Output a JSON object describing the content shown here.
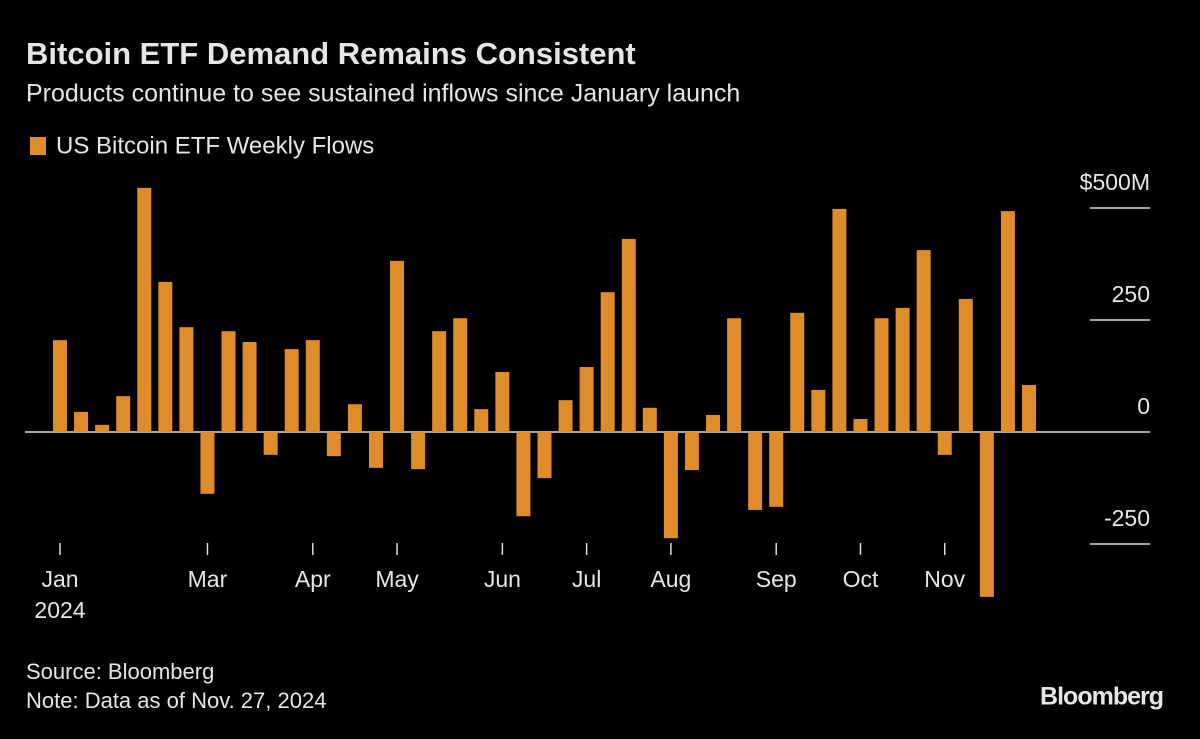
{
  "chart_data": {
    "type": "bar",
    "title": "Bitcoin ETF Demand Remains Consistent",
    "subtitle": "Products continue to see sustained inflows since January launch",
    "series": [
      {
        "name": "US Bitcoin ETF Weekly Flows",
        "color": "#e08c2a",
        "values": [
          205,
          45,
          16,
          80,
          545,
          335,
          234,
          -138,
          225,
          201,
          -51,
          185,
          205,
          -54,
          62,
          -80,
          382,
          -83,
          225,
          254,
          51,
          134,
          -188,
          -103,
          71,
          145,
          312,
          431,
          54,
          -237,
          -85,
          38,
          254,
          -174,
          -167,
          266,
          94,
          498,
          29,
          254,
          277,
          406,
          -51,
          297,
          -368,
          493,
          105
        ]
      }
    ],
    "categories": [
      "Jan\n2024",
      null,
      null,
      null,
      null,
      null,
      null,
      "Mar",
      null,
      null,
      null,
      null,
      "Apr",
      null,
      null,
      null,
      "May",
      null,
      null,
      null,
      null,
      "Jun",
      null,
      null,
      null,
      "Jul",
      null,
      null,
      null,
      "Aug",
      null,
      null,
      null,
      null,
      "Sep",
      null,
      null,
      null,
      "Oct",
      null,
      null,
      null,
      "Nov",
      null,
      null,
      null,
      null
    ],
    "ylim": [
      -400,
      550
    ],
    "yticks": [
      {
        "value": 500,
        "label": "$500M"
      },
      250,
      0,
      -250
    ],
    "source": "Source: Bloomberg",
    "note": "Note: Data as of Nov. 27, 2024",
    "brand": "Bloomberg"
  }
}
